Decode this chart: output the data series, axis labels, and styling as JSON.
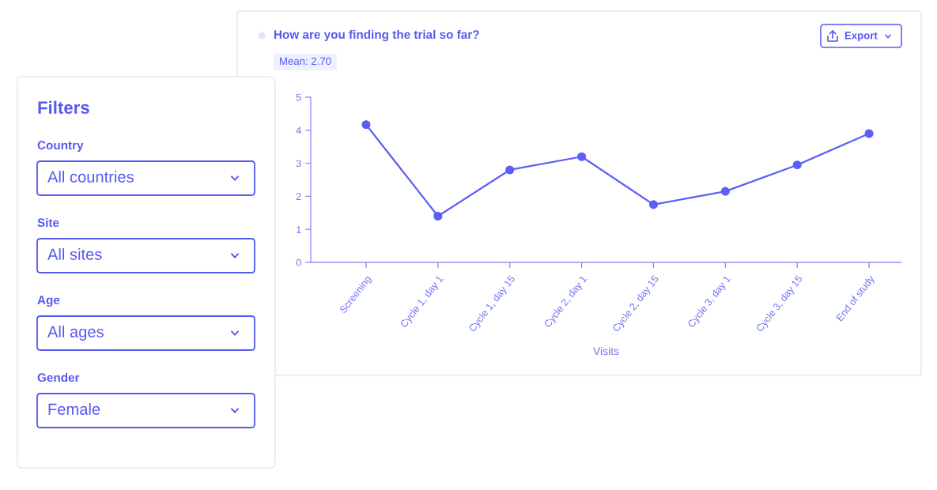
{
  "chart_data": [
    {
      "type": "line",
      "title": "How are you finding the trial so far?",
      "annotations": [
        "Mean: 2.70",
        "Export"
      ],
      "categories": [
        "Screening",
        "Cycle 1, day 1",
        "Cycle 1, day 15",
        "Cycle 2, day 1",
        "Cycle 2, day 15",
        "Cycle 3, day 1",
        "Cycle 3, day 15",
        "End of study"
      ],
      "xlabel": "Visits",
      "series": [
        {
          "color": "#5b5ff6",
          "values": [
            4.17,
            1.4,
            2.8,
            3.2,
            1.75,
            2.15,
            2.95,
            3.9
          ]
        }
      ],
      "ylim": [
        0,
        5
      ],
      "yticks": [
        0,
        1,
        2,
        3,
        4,
        5
      ],
      "marker": "circle",
      "line_style": "solid"
    },
    {
      "type": "other",
      "title": "Filters",
      "annotations": [
        "Country",
        "All countries",
        "Site",
        "All sites",
        "Age",
        "All ages",
        "Gender",
        "Female"
      ]
    }
  ]
}
